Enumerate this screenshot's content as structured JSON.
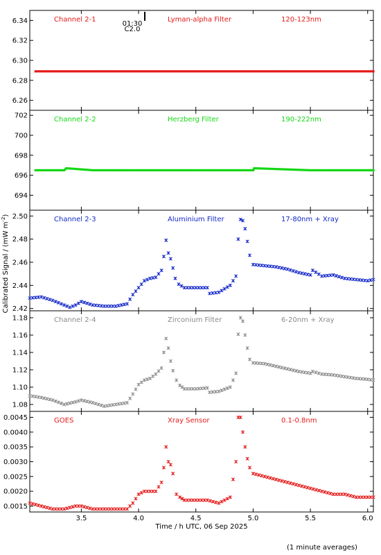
{
  "figure": {
    "ylabel": "Calibrated Signal / (mW m",
    "ylabel_sup": "-2",
    "ylabel_close": ")",
    "xlabel": "Time / h UTC, 06 Sep 2025",
    "footnote": "(1 minute averages)",
    "marker_label_1": "01:30",
    "marker_label_2": "C2.0"
  },
  "chart_data": [
    {
      "type": "scatter",
      "channel": "Channel 2-1",
      "filter": "Lyman-alpha Filter",
      "band": "120-123nm",
      "color": "#e61919",
      "xlim": [
        3.05,
        6.05
      ],
      "ylim": [
        6.25,
        6.35
      ],
      "yticks": [
        6.26,
        6.28,
        6.3,
        6.32,
        6.34
      ],
      "ytick_labels": [
        "6.26",
        "6.28",
        "6.30",
        "6.32",
        "6.34"
      ],
      "x": [
        3.1,
        3.6,
        4.1,
        4.6,
        5.1,
        5.6,
        6.05
      ],
      "y": [
        6.289,
        6.289,
        6.289,
        6.289,
        6.289,
        6.289,
        6.289
      ],
      "continuous": true
    },
    {
      "type": "scatter",
      "channel": "Channel 2-2",
      "filter": "Herzberg Filter",
      "band": "190-222nm",
      "color": "#14d714",
      "xlim": [
        3.05,
        6.05
      ],
      "ylim": [
        692.5,
        702.5
      ],
      "yticks": [
        694,
        696,
        698,
        700,
        702
      ],
      "ytick_labels": [
        "694",
        "696",
        "698",
        "700",
        "702"
      ],
      "x": [
        3.1,
        3.35,
        3.37,
        3.6,
        4.1,
        4.6,
        5.0,
        5.01,
        5.5,
        6.05
      ],
      "y": [
        696.5,
        696.5,
        696.7,
        696.5,
        696.5,
        696.5,
        696.5,
        696.7,
        696.5,
        696.5
      ],
      "continuous": true
    },
    {
      "type": "scatter",
      "channel": "Channel 2-3",
      "filter": "Aluminium Filter",
      "band": "17-80nm + Xray",
      "color": "#1428c8",
      "xlim": [
        3.05,
        6.05
      ],
      "ylim": [
        2.418,
        2.505
      ],
      "yticks": [
        2.42,
        2.44,
        2.46,
        2.48,
        2.5
      ],
      "ytick_labels": [
        "2.42",
        "2.44",
        "2.46",
        "2.48",
        "2.50"
      ],
      "x": [
        3.05,
        3.15,
        3.25,
        3.35,
        3.4,
        3.45,
        3.5,
        3.6,
        3.7,
        3.8,
        3.9,
        3.95,
        4.0,
        4.05,
        4.1,
        4.15,
        4.2,
        4.22,
        4.24,
        4.26,
        4.28,
        4.3,
        4.32,
        4.35,
        4.4,
        4.5,
        4.6,
        4.62,
        4.7,
        4.8,
        4.85,
        4.87,
        4.89,
        4.91,
        4.93,
        4.95,
        4.97,
        5.0,
        5.1,
        5.2,
        5.3,
        5.4,
        5.5,
        5.52,
        5.6,
        5.7,
        5.8,
        5.9,
        6.0,
        6.05
      ],
      "y": [
        2.429,
        2.43,
        2.427,
        2.423,
        2.421,
        2.423,
        2.426,
        2.423,
        2.422,
        2.422,
        2.424,
        2.432,
        2.438,
        2.444,
        2.446,
        2.447,
        2.453,
        2.465,
        2.479,
        2.468,
        2.463,
        2.455,
        2.446,
        2.441,
        2.438,
        2.438,
        2.438,
        2.433,
        2.434,
        2.44,
        2.448,
        2.48,
        2.497,
        2.496,
        2.489,
        2.478,
        2.466,
        2.458,
        2.457,
        2.456,
        2.454,
        2.451,
        2.449,
        2.453,
        2.448,
        2.449,
        2.446,
        2.445,
        2.444,
        2.445
      ],
      "continuous": false
    },
    {
      "type": "scatter",
      "channel": "Channel 2-4",
      "filter": "Zirconium Filter",
      "band": "6-20nm + Xray",
      "color": "#8a8a8a",
      "xlim": [
        3.05,
        6.05
      ],
      "ylim": [
        1.072,
        1.188
      ],
      "yticks": [
        1.08,
        1.1,
        1.12,
        1.14,
        1.16,
        1.18
      ],
      "ytick_labels": [
        "1.08",
        "1.10",
        "1.12",
        "1.14",
        "1.16",
        "1.18"
      ],
      "x": [
        3.05,
        3.15,
        3.25,
        3.35,
        3.45,
        3.5,
        3.6,
        3.7,
        3.8,
        3.9,
        3.95,
        4.0,
        4.05,
        4.1,
        4.15,
        4.2,
        4.22,
        4.24,
        4.26,
        4.28,
        4.3,
        4.33,
        4.36,
        4.4,
        4.5,
        4.6,
        4.62,
        4.7,
        4.8,
        4.85,
        4.87,
        4.89,
        4.91,
        4.93,
        4.95,
        4.97,
        5.0,
        5.1,
        5.2,
        5.3,
        5.4,
        5.5,
        5.52,
        5.6,
        5.7,
        5.8,
        5.9,
        6.0,
        6.05
      ],
      "y": [
        1.09,
        1.088,
        1.085,
        1.08,
        1.083,
        1.085,
        1.082,
        1.078,
        1.08,
        1.082,
        1.092,
        1.103,
        1.108,
        1.11,
        1.115,
        1.122,
        1.14,
        1.156,
        1.145,
        1.13,
        1.119,
        1.108,
        1.102,
        1.098,
        1.098,
        1.099,
        1.094,
        1.095,
        1.1,
        1.116,
        1.161,
        1.18,
        1.176,
        1.16,
        1.145,
        1.132,
        1.128,
        1.127,
        1.124,
        1.121,
        1.118,
        1.116,
        1.118,
        1.115,
        1.114,
        1.112,
        1.11,
        1.109,
        1.108
      ],
      "continuous": false
    },
    {
      "type": "scatter",
      "channel": "GOES",
      "filter": "Xray Sensor",
      "band": "0.1-0.8nm",
      "color": "#e61919",
      "xlim": [
        3.05,
        6.05
      ],
      "ylim": [
        0.0013,
        0.0047
      ],
      "yticks": [
        0.0015,
        0.002,
        0.0025,
        0.003,
        0.0035,
        0.004,
        0.0045
      ],
      "ytick_labels": [
        "0.0015",
        "0.0020",
        "0.0025",
        "0.0030",
        "0.0035",
        "0.0040",
        "0.0045"
      ],
      "x": [
        3.05,
        3.15,
        3.25,
        3.35,
        3.45,
        3.5,
        3.6,
        3.7,
        3.8,
        3.9,
        3.95,
        4.0,
        4.05,
        4.1,
        4.15,
        4.2,
        4.22,
        4.24,
        4.26,
        4.28,
        4.3,
        4.33,
        4.36,
        4.4,
        4.5,
        4.6,
        4.7,
        4.8,
        4.85,
        4.87,
        4.89,
        4.91,
        4.93,
        4.95,
        4.97,
        5.0,
        5.1,
        5.2,
        5.3,
        5.4,
        5.5,
        5.6,
        5.7,
        5.8,
        5.9,
        6.0,
        6.05
      ],
      "y": [
        0.0016,
        0.0015,
        0.0014,
        0.0014,
        0.0015,
        0.0015,
        0.0014,
        0.0014,
        0.0014,
        0.0014,
        0.0016,
        0.0019,
        0.002,
        0.002,
        0.002,
        0.0023,
        0.0028,
        0.0035,
        0.003,
        0.0029,
        0.0026,
        0.0019,
        0.0018,
        0.0017,
        0.0017,
        0.0017,
        0.0016,
        0.0018,
        0.003,
        0.0045,
        0.0045,
        0.004,
        0.0035,
        0.0031,
        0.0028,
        0.0026,
        0.0025,
        0.0024,
        0.0023,
        0.0022,
        0.0021,
        0.002,
        0.0019,
        0.0019,
        0.0018,
        0.0018,
        0.0018
      ],
      "continuous": false
    }
  ],
  "xaxis": {
    "ticks": [
      3.5,
      4.0,
      4.5,
      5.0,
      5.5,
      6.0
    ],
    "tick_labels": [
      "3.5",
      "4.0",
      "4.5",
      "5.0",
      "5.5",
      "6.0"
    ]
  }
}
